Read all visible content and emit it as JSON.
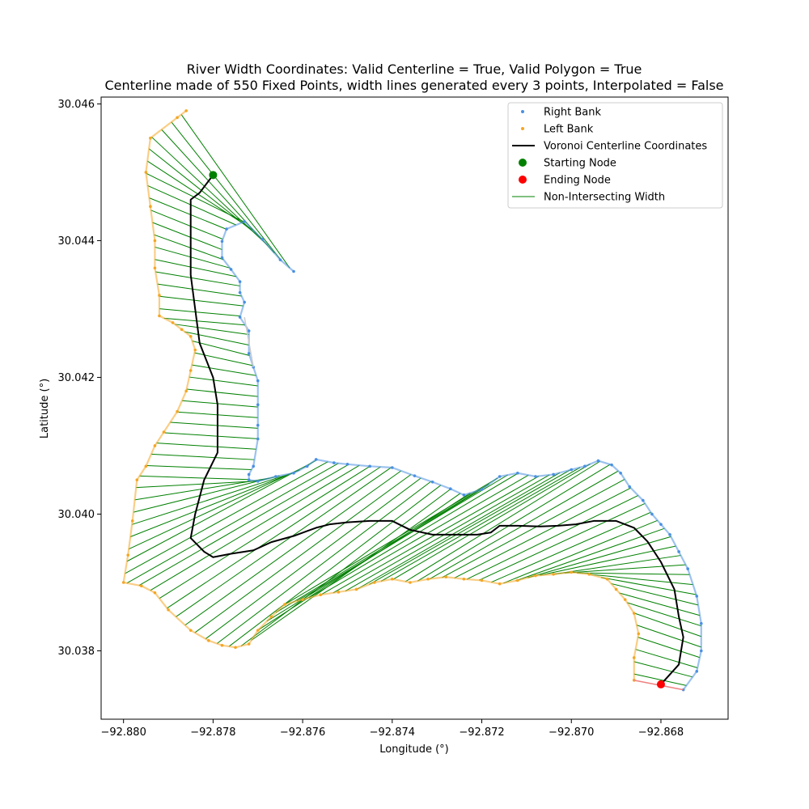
{
  "chart_data": {
    "type": "scatter",
    "title": "River Width Coordinates: Valid Centerline = True, Valid Polygon = True",
    "subtitle": "Centerline made of 550 Fixed Points, width lines generated every 3 points, Interpolated = False",
    "xlabel": "Longitude (°)",
    "ylabel": "Latitude (°)",
    "xlim": [
      -92.8805,
      -92.8665
    ],
    "ylim": [
      30.037,
      30.0461
    ],
    "xticks": [
      -92.88,
      -92.878,
      -92.876,
      -92.874,
      -92.872,
      -92.87,
      -92.868
    ],
    "xtick_labels": [
      "−92.880",
      "−92.878",
      "−92.876",
      "−92.874",
      "−92.872",
      "−92.870",
      "−92.868"
    ],
    "yticks": [
      30.038,
      30.04,
      30.042,
      30.044,
      30.046
    ],
    "ytick_labels": [
      "30.038",
      "30.040",
      "30.042",
      "30.044",
      "30.046"
    ],
    "grid": false,
    "legend_position": "top-right",
    "colors": {
      "right_bank": "#4a90e2",
      "left_bank": "#f5a623",
      "centerline": "#000000",
      "start": "#008000",
      "end": "#ff0000",
      "width": "#008000",
      "gap": "#cccccc",
      "end_cap": "#f08080"
    },
    "legend": [
      {
        "label": "Right Bank",
        "kind": "dot",
        "color": "#4a90e2"
      },
      {
        "label": "Left Bank",
        "kind": "dot",
        "color": "#f5a623"
      },
      {
        "label": "Voronoi Centerline Coordinates",
        "kind": "line",
        "color": "#000000"
      },
      {
        "label": "Starting Node",
        "kind": "bigdot",
        "color": "#008000"
      },
      {
        "label": "Ending Node",
        "kind": "bigdot",
        "color": "#ff0000"
      },
      {
        "label": "Non-Intersecting Width",
        "kind": "thinline",
        "color": "#008000"
      }
    ],
    "start_node": [
      -92.878,
      30.04496
    ],
    "end_node": [
      -92.868,
      30.03751
    ],
    "right_bank": [
      [
        -92.8762,
        30.04355
      ],
      [
        -92.8765,
        30.04372
      ],
      [
        -92.8769,
        30.04402
      ],
      [
        -92.8773,
        30.04428
      ],
      [
        -92.8777,
        30.04417
      ],
      [
        -92.8778,
        30.04399
      ],
      [
        -92.8778,
        30.04375
      ],
      [
        -92.8776,
        30.04358
      ],
      [
        -92.8774,
        30.0434
      ],
      [
        -92.8774,
        30.04324
      ],
      [
        -92.8773,
        30.0431
      ],
      [
        -92.8774,
        30.04288
      ],
      [
        -92.8772,
        30.04268
      ],
      [
        -92.8772,
        30.04235
      ],
      [
        -92.8771,
        30.04215
      ],
      [
        -92.877,
        30.04195
      ],
      [
        -92.877,
        30.0416
      ],
      [
        -92.877,
        30.0413
      ],
      [
        -92.877,
        30.0411
      ],
      [
        -92.8771,
        30.0407
      ],
      [
        -92.8772,
        30.04058
      ],
      [
        -92.8772,
        30.0405
      ],
      [
        -92.877,
        30.04048
      ],
      [
        -92.8766,
        30.04055
      ],
      [
        -92.8762,
        30.0406
      ],
      [
        -92.8759,
        30.0407
      ],
      [
        -92.8757,
        30.0408
      ],
      [
        -92.8753,
        30.04075
      ],
      [
        -92.875,
        30.04073
      ],
      [
        -92.8745,
        30.0407
      ],
      [
        -92.874,
        30.04068
      ],
      [
        -92.8735,
        30.04056
      ],
      [
        -92.8731,
        30.04047
      ],
      [
        -92.8727,
        30.04037
      ],
      [
        -92.8724,
        30.04028
      ],
      [
        -92.872,
        30.04036
      ],
      [
        -92.8716,
        30.04055
      ],
      [
        -92.8712,
        30.0406
      ],
      [
        -92.8708,
        30.04055
      ],
      [
        -92.8704,
        30.04058
      ],
      [
        -92.87,
        30.04065
      ],
      [
        -92.8697,
        30.0407
      ],
      [
        -92.8694,
        30.04078
      ],
      [
        -92.8691,
        30.04072
      ],
      [
        -92.8689,
        30.0406
      ],
      [
        -92.8687,
        30.0404
      ],
      [
        -92.8684,
        30.0402
      ],
      [
        -92.8682,
        30.04
      ],
      [
        -92.868,
        30.03985
      ],
      [
        -92.8678,
        30.0397
      ],
      [
        -92.8676,
        30.03945
      ],
      [
        -92.8674,
        30.0392
      ],
      [
        -92.8672,
        30.0388
      ],
      [
        -92.8671,
        30.0384
      ],
      [
        -92.8671,
        30.038
      ],
      [
        -92.8672,
        30.0377
      ],
      [
        -92.8675,
        30.03743
      ]
    ],
    "left_bank": [
      [
        -92.8686,
        30.03757
      ],
      [
        -92.8686,
        30.0379
      ],
      [
        -92.8685,
        30.03825
      ],
      [
        -92.8686,
        30.03855
      ],
      [
        -92.8688,
        30.03875
      ],
      [
        -92.869,
        30.0389
      ],
      [
        -92.8692,
        30.03905
      ],
      [
        -92.8696,
        30.03912
      ],
      [
        -92.87,
        30.03915
      ],
      [
        -92.8704,
        30.03912
      ],
      [
        -92.8708,
        30.0391
      ],
      [
        -92.8712,
        30.03903
      ],
      [
        -92.8716,
        30.03898
      ],
      [
        -92.872,
        30.03903
      ],
      [
        -92.8724,
        30.03905
      ],
      [
        -92.8728,
        30.03908
      ],
      [
        -92.8732,
        30.03905
      ],
      [
        -92.8736,
        30.039
      ],
      [
        -92.874,
        30.03905
      ],
      [
        -92.8744,
        30.039
      ],
      [
        -92.8748,
        30.0389
      ],
      [
        -92.8752,
        30.03886
      ],
      [
        -92.8756,
        30.03882
      ],
      [
        -92.876,
        30.03875
      ],
      [
        -92.8764,
        30.03868
      ],
      [
        -92.8767,
        30.0385
      ],
      [
        -92.877,
        30.0383
      ],
      [
        -92.8772,
        30.0381
      ],
      [
        -92.8775,
        30.03805
      ],
      [
        -92.8778,
        30.03808
      ],
      [
        -92.8781,
        30.03815
      ],
      [
        -92.8785,
        30.0383
      ],
      [
        -92.879,
        30.0386
      ],
      [
        -92.8793,
        30.03885
      ],
      [
        -92.8796,
        30.03895
      ],
      [
        -92.88,
        30.039
      ],
      [
        -92.8799,
        30.0394
      ],
      [
        -92.8798,
        30.0399
      ],
      [
        -92.8797,
        30.0405
      ],
      [
        -92.8795,
        30.0407
      ],
      [
        -92.8793,
        30.041
      ],
      [
        -92.8791,
        30.0412
      ],
      [
        -92.8788,
        30.0415
      ],
      [
        -92.8786,
        30.0418
      ],
      [
        -92.8785,
        30.0421
      ],
      [
        -92.8784,
        30.0424
      ],
      [
        -92.8785,
        30.0426
      ],
      [
        -92.8787,
        30.0427
      ],
      [
        -92.8789,
        30.0428
      ],
      [
        -92.8792,
        30.0429
      ],
      [
        -92.8792,
        30.0432
      ],
      [
        -92.8793,
        30.0436
      ],
      [
        -92.8793,
        30.044
      ],
      [
        -92.8794,
        30.0445
      ],
      [
        -92.8795,
        30.045
      ],
      [
        -92.8794,
        30.0455
      ],
      [
        -92.8788,
        30.0458
      ],
      [
        -92.8786,
        30.0459
      ]
    ],
    "centerline": [
      [
        -92.878,
        30.04496
      ],
      [
        -92.8783,
        30.0447
      ],
      [
        -92.8785,
        30.0446
      ],
      [
        -92.8785,
        30.044
      ],
      [
        -92.8785,
        30.0435
      ],
      [
        -92.8784,
        30.043
      ],
      [
        -92.8783,
        30.0425
      ],
      [
        -92.878,
        30.042
      ],
      [
        -92.8779,
        30.0416
      ],
      [
        -92.8779,
        30.0413
      ],
      [
        -92.8779,
        30.0409
      ],
      [
        -92.8782,
        30.0405
      ],
      [
        -92.8784,
        30.04
      ],
      [
        -92.8785,
        30.03965
      ],
      [
        -92.8782,
        30.03945
      ],
      [
        -92.878,
        30.03937
      ],
      [
        -92.8776,
        30.03942
      ],
      [
        -92.8771,
        30.03947
      ],
      [
        -92.8767,
        30.03959
      ],
      [
        -92.8762,
        30.03968
      ],
      [
        -92.8757,
        30.0398
      ],
      [
        -92.8754,
        30.03985
      ],
      [
        -92.875,
        30.03988
      ],
      [
        -92.8745,
        30.0399
      ],
      [
        -92.874,
        30.0399
      ],
      [
        -92.8736,
        30.03977
      ],
      [
        -92.8731,
        30.0397
      ],
      [
        -92.8725,
        30.0397
      ],
      [
        -92.8721,
        30.0397
      ],
      [
        -92.8718,
        30.03973
      ],
      [
        -92.8716,
        30.03983
      ],
      [
        -92.8712,
        30.03983
      ],
      [
        -92.8707,
        30.03982
      ],
      [
        -92.8703,
        30.03983
      ],
      [
        -92.8699,
        30.03985
      ],
      [
        -92.8695,
        30.0399
      ],
      [
        -92.869,
        30.0399
      ],
      [
        -92.8686,
        30.0398
      ],
      [
        -92.8683,
        30.0396
      ],
      [
        -92.868,
        30.0393
      ],
      [
        -92.8677,
        30.0389
      ],
      [
        -92.8676,
        30.0385
      ],
      [
        -92.8675,
        30.0382
      ],
      [
        -92.8676,
        30.0378
      ],
      [
        -92.868,
        30.03751
      ]
    ],
    "gap_segment": [
      [
        -92.8773,
        30.04288
      ],
      [
        -92.8771,
        30.04215
      ]
    ],
    "end_cap": [
      [
        -92.8686,
        30.03757
      ],
      [
        -92.8675,
        30.03743
      ]
    ],
    "width_line_count": 94
  }
}
